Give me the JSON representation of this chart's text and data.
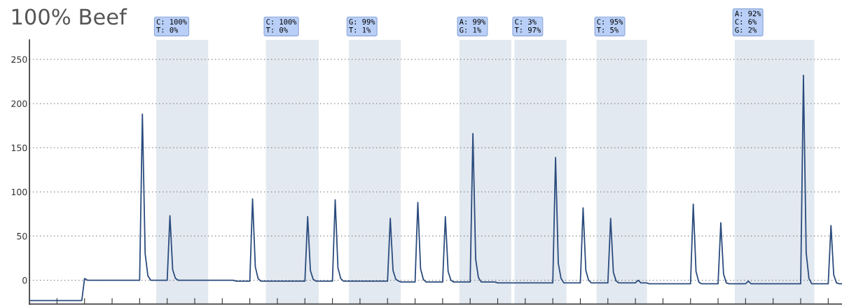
{
  "chart_data": {
    "type": "line",
    "title": "100% Beef",
    "categories": [
      null,
      null,
      null,
      null,
      null,
      null,
      null,
      null,
      null,
      null,
      null,
      null,
      null,
      null,
      null,
      null,
      null,
      null,
      null,
      null,
      null,
      null,
      null,
      null,
      null,
      null,
      null,
      null,
      null,
      null,
      null,
      null,
      null,
      null,
      null,
      null,
      null,
      null,
      null,
      null,
      null,
      null,
      null,
      null,
      null,
      null,
      null,
      null,
      null,
      null,
      null,
      null,
      null,
      null,
      null,
      null,
      null,
      null,
      null,
      null,
      null,
      null,
      null,
      null,
      null,
      null,
      null,
      null,
      null,
      null,
      null,
      null,
      null,
      null,
      null,
      null,
      null,
      null,
      null,
      null,
      null,
      null,
      null,
      null,
      null,
      null,
      null,
      null,
      null,
      null,
      null,
      null,
      null,
      null,
      null,
      null,
      null,
      null,
      null,
      null,
      null,
      null,
      null,
      null,
      null,
      null,
      null,
      null,
      null,
      null,
      null,
      null,
      null,
      null,
      null,
      null,
      null,
      null,
      null,
      null,
      null,
      null,
      null,
      null,
      null,
      null,
      null,
      null,
      null,
      null,
      null,
      null,
      null,
      null,
      null,
      null,
      null,
      null,
      null,
      null,
      null,
      null,
      null,
      null,
      null,
      null,
      null,
      null,
      null,
      null,
      null,
      null,
      null,
      null,
      null,
      null,
      null,
      null,
      null,
      null,
      null,
      null,
      null,
      null,
      null,
      null,
      null,
      null,
      null,
      null,
      null,
      null,
      null,
      null,
      null,
      null,
      null,
      null,
      null,
      null,
      null,
      null,
      null,
      null,
      null,
      null,
      null,
      null,
      null,
      null,
      null,
      null,
      null,
      null,
      null,
      null,
      null,
      null,
      null,
      null,
      null,
      null,
      null,
      null,
      null,
      null,
      null,
      null,
      null,
      null,
      null,
      null,
      null,
      null,
      null,
      null,
      null,
      null,
      null,
      null,
      null,
      null,
      null,
      null,
      null,
      null,
      null,
      null,
      null,
      null,
      null,
      null,
      null,
      null,
      null,
      null,
      null,
      null,
      null,
      null,
      null,
      null,
      null,
      null,
      null,
      null,
      null,
      null,
      null,
      null,
      null,
      null,
      null,
      null,
      null,
      null,
      null,
      null,
      null,
      null,
      null,
      null,
      null,
      null,
      null,
      null,
      null,
      null,
      null,
      null,
      null,
      null,
      null,
      null,
      null,
      null,
      null,
      null,
      null,
      null,
      null,
      null,
      null,
      null,
      null,
      null,
      null,
      null,
      null,
      null,
      null,
      null,
      null,
      null,
      null,
      null
    ],
    "series": [
      {
        "color": "#2b4c7e",
        "values": [
          -23,
          -23,
          -23,
          -23,
          -23,
          -23,
          -23,
          -23,
          -23,
          -23,
          -23,
          -23,
          -23,
          -23,
          -23,
          -23,
          -23,
          -23,
          -23,
          -23,
          2,
          0,
          0,
          0,
          0,
          0,
          0,
          0,
          0,
          0,
          0,
          0,
          0,
          0,
          0,
          0,
          0,
          0,
          0,
          0,
          0,
          188,
          30,
          5,
          0,
          0,
          0,
          0,
          0,
          0,
          0,
          73,
          12,
          2,
          0,
          0,
          0,
          0,
          0,
          0,
          0,
          0,
          0,
          0,
          0,
          0,
          0,
          0,
          0,
          0,
          0,
          0,
          0,
          0,
          0,
          -1,
          -1,
          -1,
          -1,
          -1,
          -1,
          92,
          15,
          2,
          -1,
          -1,
          -1,
          -1,
          -1,
          -1,
          -1,
          -1,
          -1,
          -1,
          -1,
          -1,
          -1,
          -1,
          -1,
          -1,
          -1,
          72,
          11,
          1,
          -1,
          -1,
          -1,
          -1,
          -1,
          -1,
          -1,
          91,
          14,
          2,
          -1,
          -1,
          -1,
          -1,
          -1,
          -1,
          -1,
          -1,
          -1,
          -1,
          -1,
          -1,
          -1,
          -1,
          -1,
          -1,
          -1,
          70,
          11,
          1,
          -1,
          -2,
          -2,
          -2,
          -2,
          -2,
          -2,
          88,
          13,
          1,
          -2,
          -2,
          -2,
          -2,
          -2,
          -2,
          -2,
          72,
          10,
          0,
          -2,
          -2,
          -2,
          -2,
          -2,
          -2,
          -2,
          166,
          24,
          3,
          -2,
          -2,
          -2,
          -2,
          -2,
          -2,
          -3,
          -3,
          -3,
          -3,
          -3,
          -3,
          -3,
          -3,
          -3,
          -3,
          -3,
          -3,
          -3,
          -3,
          -3,
          -3,
          -3,
          -3,
          -3,
          -3,
          -3,
          139,
          19,
          2,
          -3,
          -3,
          -3,
          -3,
          -3,
          -3,
          -3,
          82,
          11,
          0,
          -3,
          -3,
          -3,
          -3,
          -3,
          -3,
          -3,
          70,
          9,
          -1,
          -3,
          -3,
          -3,
          -3,
          -3,
          -3,
          -3,
          0,
          -3,
          -3,
          -3,
          -4,
          -4,
          -4,
          -4,
          -4,
          -4,
          -4,
          -4,
          -4,
          -4,
          -4,
          -4,
          -4,
          -4,
          -4,
          -4,
          86,
          10,
          -2,
          -4,
          -4,
          -4,
          -4,
          -4,
          -4,
          -4,
          65,
          7,
          -3,
          -4,
          -4,
          -4,
          -4,
          -4,
          -4,
          -4,
          -1,
          -4,
          -4,
          -4,
          -4,
          -4,
          -4,
          -4,
          -4,
          -4,
          -4,
          -4,
          -4,
          -4,
          -4,
          -4,
          -4,
          -4,
          -4,
          -4,
          232,
          31,
          2,
          -4,
          -4,
          -4,
          -4,
          -4,
          -4,
          -4,
          62,
          6,
          -3,
          -4,
          -4
        ]
      }
    ],
    "ylim": [
      -27,
      272
    ],
    "yticks": [
      0,
      50,
      100,
      150,
      200,
      250
    ],
    "grid": "y",
    "annotations": [
      "C: 100%\nT: 0%",
      "C: 100%\nT: 0%",
      "G: 99%\nT: 1%",
      "A: 99%\nG: 1%",
      "C: 3%\nT: 97%",
      "C: 95%\nT: 5%",
      "A: 92%\nC: 6%\nG: 2%"
    ]
  }
}
